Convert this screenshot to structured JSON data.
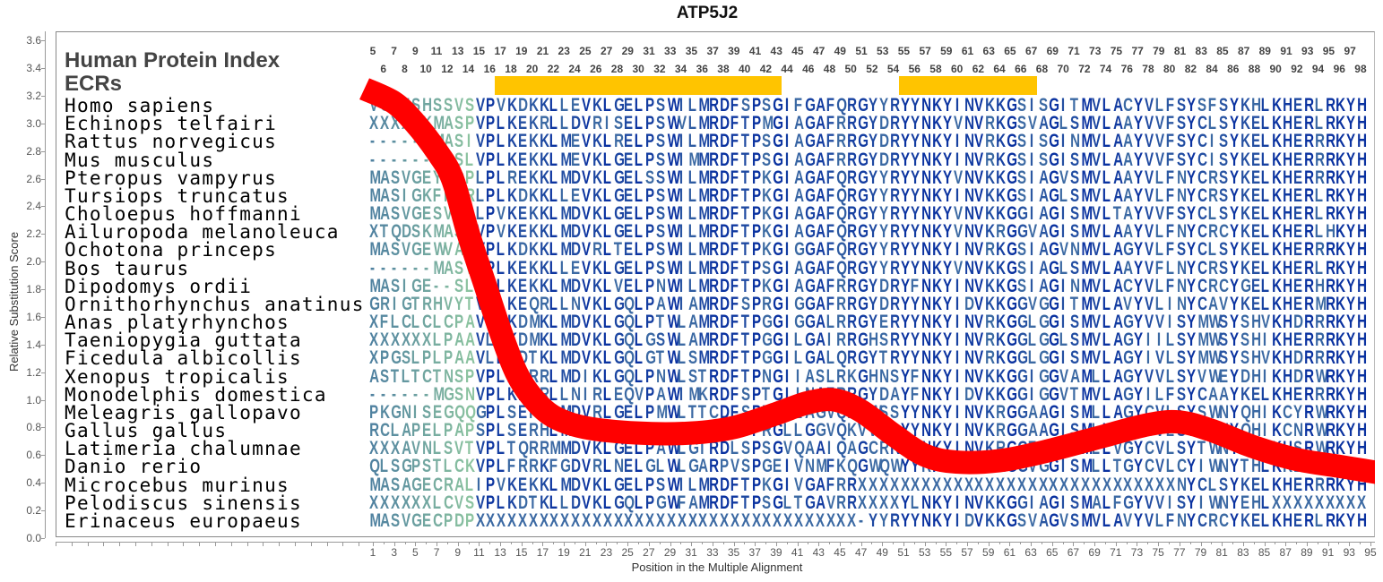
{
  "chart_data": {
    "type": "line",
    "title": "ATP5J2",
    "xlabel": "Position in the Multiple Alignment",
    "ylabel": "Relative Substitution Score",
    "ylim": [
      0,
      3.6
    ],
    "xlim": [
      1,
      95
    ],
    "yticks": [
      "0.0",
      "0.2",
      "0.4",
      "0.6",
      "0.8",
      "1.0",
      "1.2",
      "1.4",
      "1.6",
      "1.8",
      "2.0",
      "2.2",
      "2.4",
      "2.6",
      "2.8",
      "3.0",
      "3.2",
      "3.4",
      "3.6"
    ],
    "xticks": [
      "1",
      "3",
      "5",
      "7",
      "9",
      "11",
      "13",
      "15",
      "17",
      "19",
      "21",
      "23",
      "25",
      "27",
      "29",
      "31",
      "33",
      "35",
      "37",
      "39",
      "41",
      "43",
      "45",
      "47",
      "49",
      "51",
      "53",
      "55",
      "57",
      "59",
      "61",
      "63",
      "65",
      "67",
      "69",
      "71",
      "73",
      "75",
      "77",
      "79",
      "81",
      "83",
      "85",
      "87",
      "89",
      "91",
      "93",
      "95"
    ],
    "series": [
      {
        "name": "substitution score",
        "color": "#ff0000",
        "points": [
          [
            0.2,
            3.25
          ],
          [
            3,
            3.15
          ],
          [
            5,
            3.0
          ],
          [
            7,
            2.8
          ],
          [
            8.5,
            2.6
          ],
          [
            10,
            2.2
          ],
          [
            11.5,
            1.85
          ],
          [
            13,
            1.5
          ],
          [
            14.5,
            1.2
          ],
          [
            16,
            1.02
          ],
          [
            18,
            0.88
          ],
          [
            21,
            0.8
          ],
          [
            26,
            0.76
          ],
          [
            31,
            0.76
          ],
          [
            35,
            0.8
          ],
          [
            39,
            0.9
          ],
          [
            42,
            0.98
          ],
          [
            44.5,
            1.0
          ],
          [
            47,
            0.92
          ],
          [
            50,
            0.75
          ],
          [
            53,
            0.6
          ],
          [
            56,
            0.55
          ],
          [
            60,
            0.56
          ],
          [
            64,
            0.62
          ],
          [
            69,
            0.72
          ],
          [
            74,
            0.82
          ],
          [
            77,
            0.84
          ],
          [
            80,
            0.78
          ],
          [
            84,
            0.66
          ],
          [
            88,
            0.57
          ],
          [
            92,
            0.52
          ],
          [
            96,
            0.47
          ]
        ]
      }
    ],
    "human_protein_index_label": "Human Protein Index",
    "human_index_odd": [
      "5",
      "7",
      "9",
      "11",
      "13",
      "15",
      "17",
      "19",
      "21",
      "23",
      "25",
      "27",
      "29",
      "31",
      "33",
      "35",
      "37",
      "39",
      "41",
      "43",
      "45",
      "47",
      "49",
      "51",
      "53",
      "55",
      "57",
      "59",
      "61",
      "63",
      "65",
      "67",
      "69",
      "71",
      "73",
      "75",
      "77",
      "79",
      "81",
      "83",
      "85",
      "87",
      "89",
      "91",
      "93",
      "95",
      "97"
    ],
    "human_index_even": [
      "6",
      "8",
      "10",
      "12",
      "14",
      "16",
      "18",
      "20",
      "22",
      "24",
      "26",
      "28",
      "30",
      "32",
      "34",
      "36",
      "38",
      "40",
      "42",
      "44",
      "46",
      "48",
      "50",
      "52",
      "54",
      "56",
      "58",
      "60",
      "62",
      "64",
      "66",
      "68",
      "70",
      "72",
      "74",
      "76",
      "78",
      "80",
      "82",
      "84",
      "86",
      "88",
      "90",
      "92",
      "94",
      "96",
      "98"
    ],
    "ecr_label": "ECRs",
    "ecr_color": "#ffc400",
    "ecrs_human_index": [
      [
        17,
        43
      ],
      [
        55,
        67
      ]
    ],
    "alignment": [
      {
        "species": "Homo sapiens",
        "seq": "VGIFSHSSVSVPVKDKKLLEVKLGELPSWILMRDFSPSGIFGAFQRGYYRYYNKYINVKKGSISGITMVLACYVLFSYSFSYKHLKHERLRKYH"
      },
      {
        "species": "Echinops telfairi",
        "seq": "XXXXSKMASPVPLKEKRLLDVRISELPSWVLMRDFTPMGIAGAFRRGYDRYYNKYVNVRKGSVAGLSMVLAAYVVFSYCLSYKELKHERLRKYH"
      },
      {
        "species": "Rattus norvegicus",
        "seq": "------MASIVPLKEKKLMEVKLRELPSWILMRDFTPSGIAGAFRRGYDRYYNKYINVRKGSISGINMVLAAYVVFSYCISYKELKHERRRKYH"
      },
      {
        "species": "Mus musculus",
        "seq": "------MASLVPLKEKKLMEVKLGELPSWIMMRDFTPSGIAGAFRRGYDRYYNKYINVRKGSISGISMVLAAYVVFSYCISYKELKHERRRKYH"
      },
      {
        "species": "Pteropus vampyrus",
        "seq": "MASVGEYPDPLPLREKKLMDVKLGELSSWILMRDFTPKGIAGAFQRGYYRYYNKYVNVKKGSIAGVSMVLAAYVLFNYCRSYKELKHERRRKYH"
      },
      {
        "species": "Tursiops truncatus",
        "seq": "MASIGKFPDRLPLKDKKLLEVKLGELPSWILMRDFTPKGIAGAFQRGYYRYYNKYINVKKGSIAGLSMVLAAYVLFNYCRSYKELKHERLRKYH"
      },
      {
        "species": "Choloepus hoffmanni",
        "seq": "MASVGESVALLPVKEKKLMDVKLGELPSWILMRDFTPKGIAGAFQRGYYRYYNKYVNVKKGGIAGISMVLTAYVVFSYCLSYKELKHERLRKYH"
      },
      {
        "species": "Ailuropoda melanoleuca",
        "seq": "XTQDSKMASVVPVKEKKLMDVKLGELPSWILMRDFTPKGIAGAFQRGYYRYYNKYVNVKRGGVAGISMVLAAYVLFNYCRCYKELKHERLHKYH"
      },
      {
        "species": "Ochotona princeps",
        "seq": "MASVGEWVA-VPLKDKKLMDVRLTELPSWILMRDFTPKGIGGAFQRGYYRYYNKYINVRKGSIAGVNMVLAGYVLFSYCLSYKELKHERRRKYH"
      },
      {
        "species": "Bos taurus",
        "seq": "------MASVVPLKEKKLLEVKLGELPSWILMRDFTPSGIAGAFQRGYYRYYNKYVNVKKGSIAGLSMVLAAYVFLNYCRSYKELKHERLRKYH"
      },
      {
        "species": "Dipodomys ordii",
        "seq": "MASIGE--SLVPLKEKKLMDVKLVELPNWILMRDFTPKGIAGAFRRGYDRYFNKYINVKKGSIAGINMVLACYVLFNYCRCYGELKHERHRKYH"
      },
      {
        "species": "Ornithorhynchus anatinus",
        "seq": "GRIGTRHVYTVPLKEQRLLNVKLGQLPAWIAMRDFSPRGIGGAFRRGYDRYYNKYIDVKKGGVGGITMVLAVYVLINYCAVYKELKHERMRKYH"
      },
      {
        "species": "Anas platyrhynchos",
        "seq": "XFLCLCLCPAVPLKDMKLMDVKLGQLPTWLAMRDFTPGGIGGALRRGYERYYNKYINVRKGGLGGISMVLAGYVVISYMWSYSHVKHDRRRKYH"
      },
      {
        "species": "Taeniopygia guttata",
        "seq": "XXXXXXLPAAVLLKDMKLMDVKLGQLGSWLAMRDFTPGGILGAIRRGHSRYYNKYINVRKGGLGGLSMVLAGYIILSYMWSYSHIKHERRRKYH"
      },
      {
        "species": "Ficedula albicollis",
        "seq": "XPGSLPLPAAVLLKDTKLMDVKLGQLGTWLSMRDFTPGGILGALQRGYTRYYNKYINVRKGGLGGISMVLAGYIVLSYMWSYSHVKHDRRRKYH"
      },
      {
        "species": "Xenopus tropicalis",
        "seq": "ASTLTCTNSPVPLAERRLMDIKLGQLPNWLSTRDFTPNGIIASLRKGHNSYFNKYINVKKGGIGGVAMLLAGYVVLSYVWEYDHIKHDRWRKYH"
      },
      {
        "species": "Monodelphis domestica",
        "seq": "------MGSNVPLKEQRLLNIRLEQVPAWIMKRDFSPTGIINAFRRGYDAYFNKYIDVKKGGIGGVTMVLAGYILFSYCAAYKELKHERRRKYH"
      },
      {
        "species": "Meleagris gallopavo",
        "seq": "PKGNISEGQQGPLSERHLMDVRLGELPMWLTTCDFSPRGLLAGVQKVWSSYYNKYINVKRGGAAGISMLLAGYCVLSYSWNYQHIKCYRWRKYH"
      },
      {
        "species": "Gallus gallus",
        "seq": "RCLAPELPAPSPLSERHLMDVRLGELPTWLTTCDISPRGLLGGVQKVWSSYYNKYINVKRGGAAGISMLLAGYCVLSYSWNYQHIKCNRWRKYH"
      },
      {
        "species": "Latimeria chalumnae",
        "seq": "XXXAVNLSVTVPLTQRRMMDVKLGELPAWLGTRDLSPSGVQAAIQAGCRRYYNKYINVKRGGFGGITMLLVGYCVLSYTWNYEHLKHSRWRKYH"
      },
      {
        "species": "Danio rerio",
        "seq": "QLSGPSTLCKVPLFRRKFGDVRLNELGLWLGARPVSPGEIVNMFKQGWQWYYRKYIDVRRGGVGGISMLLTGYCVLCYIWNYTHLKKDRWRKYH"
      },
      {
        "species": "Microcebus murinus",
        "seq": "MASAGECRALIPVKEKKLMDVKLGELPSWILMRDFTPKGIVGAFRRXXXXXXXXXXXXXXXXXXXXXXXXXXXXXXNYCLSYKELKHERRRKYH"
      },
      {
        "species": "Pelodiscus sinensis",
        "seq": "XXXXXXLCVSVPLKDTKLLDVKLGQLPGWFAMRDFTPSGLTGAVRRXXXXYLNKYINVKKGGIAGISMALFGYVVISYIWNYEHLXXXXXXXXX"
      },
      {
        "species": "Erinaceus europaeus",
        "seq": "MASVGECPDPXXXXXXXXXXXXXXXXXXXXXXXXXXXXXXXXXXXX-YYRYYNKYIDVKKGSVAGVSMVLAVYVLFNYCRCYKELKHERLRKYH"
      }
    ]
  }
}
